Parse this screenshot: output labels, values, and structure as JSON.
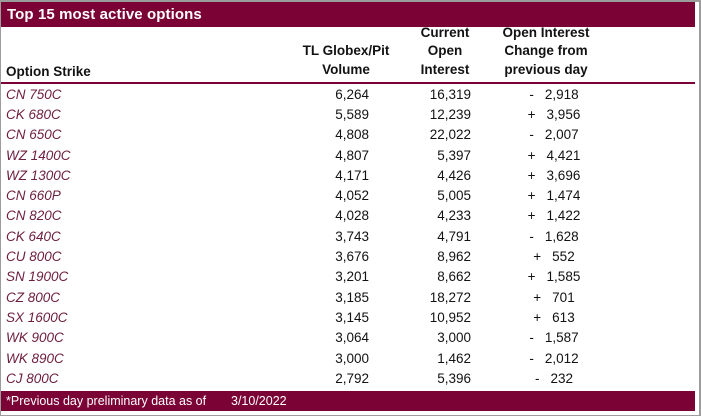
{
  "title": "Top 15 most active options",
  "colors": {
    "maroon": "#7B0235",
    "strike_text": "#6E2040",
    "title_text": "#FFFFFF",
    "body_text": "#121212"
  },
  "table": {
    "headers": {
      "option_strike": "Option Strike",
      "volume": [
        "TL Globex/Pit",
        "Volume"
      ],
      "open_interest": [
        "Current",
        "Open",
        "Interest"
      ],
      "oi_change": [
        "Open Interest",
        "Change from",
        "previous day"
      ]
    },
    "rows": [
      {
        "strike": "CN 750C",
        "volume": "6,264",
        "open_interest": "16,319",
        "change_sign": "-",
        "change_value": "2,918"
      },
      {
        "strike": "CK 680C",
        "volume": "5,589",
        "open_interest": "12,239",
        "change_sign": "+",
        "change_value": "3,956"
      },
      {
        "strike": "CN 650C",
        "volume": "4,808",
        "open_interest": "22,022",
        "change_sign": "-",
        "change_value": "2,007"
      },
      {
        "strike": "WZ 1400C",
        "volume": "4,807",
        "open_interest": "5,397",
        "change_sign": "+",
        "change_value": "4,421"
      },
      {
        "strike": "WZ 1300C",
        "volume": "4,171",
        "open_interest": "4,426",
        "change_sign": "+",
        "change_value": "3,696"
      },
      {
        "strike": "CN 660P",
        "volume": "4,052",
        "open_interest": "5,005",
        "change_sign": "+",
        "change_value": "1,474"
      },
      {
        "strike": "CN 820C",
        "volume": "4,028",
        "open_interest": "4,233",
        "change_sign": "+",
        "change_value": "1,422"
      },
      {
        "strike": "CK 640C",
        "volume": "3,743",
        "open_interest": "4,791",
        "change_sign": "-",
        "change_value": "1,628"
      },
      {
        "strike": "CU 800C",
        "volume": "3,676",
        "open_interest": "8,962",
        "change_sign": "+",
        "change_value": "552"
      },
      {
        "strike": "SN 1900C",
        "volume": "3,201",
        "open_interest": "8,662",
        "change_sign": "+",
        "change_value": "1,585"
      },
      {
        "strike": "CZ 800C",
        "volume": "3,185",
        "open_interest": "18,272",
        "change_sign": "+",
        "change_value": "701"
      },
      {
        "strike": "SX 1600C",
        "volume": "3,145",
        "open_interest": "10,952",
        "change_sign": "+",
        "change_value": "613"
      },
      {
        "strike": "WK 900C",
        "volume": "3,064",
        "open_interest": "3,000",
        "change_sign": "-",
        "change_value": "1,587"
      },
      {
        "strike": "WK 890C",
        "volume": "3,000",
        "open_interest": "1,462",
        "change_sign": "-",
        "change_value": "2,012"
      },
      {
        "strike": "CJ 800C",
        "volume": "2,792",
        "open_interest": "5,396",
        "change_sign": "-",
        "change_value": "232"
      }
    ]
  },
  "footer": {
    "note": "*Previous day preliminary data as of",
    "date": "3/10/2022"
  }
}
